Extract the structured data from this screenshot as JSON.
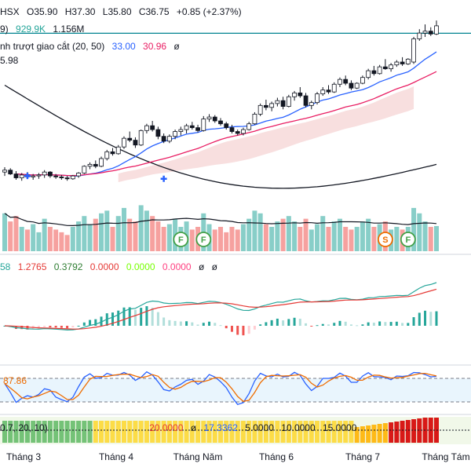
{
  "header": {
    "line1": {
      "exchange": "HSX",
      "open": "O35.90",
      "high": "H37.30",
      "low": "L35.80",
      "close": "C36.75",
      "change": "+0.85 (+2.37%)"
    },
    "line2": {
      "prefix": "9)",
      "volume": "929.9K",
      "volume_ma": "1.156M"
    },
    "line3": {
      "label": "nh trượt giao cắt (20, 50)",
      "ma_fast": "33.00",
      "ma_slow": "30.96",
      "tail": "ø"
    },
    "price_tag": "5.98"
  },
  "macd_header": {
    "v0": "58",
    "v1": "1.2765",
    "v2": "0.3792",
    "v3": "0.0000",
    "v4": "0.0000",
    "v5": "0.0000",
    "v6": "ø",
    "v7": "ø"
  },
  "stoch_header": {
    "value": "87.86"
  },
  "bottom_header": {
    "params": "0.7, 20, 10)",
    "v1": "20.0000",
    "v2": "ø",
    "v3": "17.3362",
    "v4": "5.0000",
    "v5": "10.0000",
    "v6": "15.0000"
  },
  "colors": {
    "up": "#26a69a",
    "down": "#ef5350",
    "ma_fast": "#2962ff",
    "ma_slow": "#e91e63",
    "ma_long": "#131722",
    "cloud": "#f3c5c5",
    "macd_line": "#2e7d32",
    "signal_line": "#e53935",
    "stoch_k": "#2962ff",
    "stoch_d": "#ef6c00",
    "hline": "#00838f"
  },
  "chart_data": {
    "type": "candlestick",
    "symbol_exchange": "HSX",
    "x_tick_labels": [
      "Tháng 3",
      "Tháng 4",
      "Tháng Năm",
      "Tháng 6",
      "Tháng 7",
      "Tháng Tám"
    ],
    "events": [
      {
        "label": "F",
        "kind": "dividend"
      },
      {
        "label": "F",
        "kind": "dividend"
      },
      {
        "label": "S",
        "kind": "split"
      },
      {
        "label": "F",
        "kind": "dividend"
      }
    ],
    "candles": [
      [
        21.6,
        22.1,
        21.2,
        21.8
      ],
      [
        21.8,
        22.0,
        21.3,
        21.4
      ],
      [
        21.4,
        21.7,
        20.8,
        21.0
      ],
      [
        21.0,
        21.5,
        20.7,
        21.3
      ],
      [
        21.3,
        21.6,
        20.9,
        21.1
      ],
      [
        21.1,
        21.4,
        20.8,
        21.2
      ],
      [
        21.2,
        21.5,
        20.9,
        21.3
      ],
      [
        21.3,
        21.8,
        21.0,
        21.6
      ],
      [
        21.6,
        21.7,
        21.0,
        21.2
      ],
      [
        21.2,
        21.4,
        20.9,
        21.1
      ],
      [
        21.1,
        21.3,
        20.8,
        21.0
      ],
      [
        21.0,
        21.2,
        20.7,
        20.9
      ],
      [
        20.9,
        21.3,
        20.8,
        21.2
      ],
      [
        21.2,
        21.6,
        21.0,
        21.5
      ],
      [
        21.5,
        22.3,
        21.4,
        22.2
      ],
      [
        22.2,
        22.6,
        21.9,
        22.4
      ],
      [
        22.4,
        22.8,
        22.0,
        22.2
      ],
      [
        22.2,
        23.2,
        22.1,
        23.0
      ],
      [
        23.0,
        23.9,
        22.8,
        23.7
      ],
      [
        23.7,
        24.1,
        23.3,
        23.5
      ],
      [
        23.5,
        24.4,
        23.4,
        24.2
      ],
      [
        24.2,
        25.3,
        24.0,
        25.1
      ],
      [
        25.1,
        25.8,
        24.7,
        24.9
      ],
      [
        24.9,
        25.2,
        24.1,
        24.4
      ],
      [
        24.4,
        26.0,
        24.3,
        25.9
      ],
      [
        25.9,
        26.6,
        25.6,
        26.4
      ],
      [
        26.4,
        26.9,
        25.8,
        26.0
      ],
      [
        26.0,
        26.3,
        25.0,
        25.3
      ],
      [
        25.3,
        25.6,
        24.6,
        24.8
      ],
      [
        24.8,
        25.5,
        24.6,
        25.3
      ],
      [
        25.3,
        26.0,
        25.0,
        25.8
      ],
      [
        25.8,
        26.3,
        25.4,
        26.0
      ],
      [
        26.0,
        26.6,
        25.6,
        26.4
      ],
      [
        26.4,
        26.8,
        26.0,
        26.2
      ],
      [
        26.2,
        26.5,
        25.7,
        25.9
      ],
      [
        25.9,
        27.4,
        25.8,
        27.1
      ],
      [
        27.1,
        27.6,
        26.8,
        27.3
      ],
      [
        27.3,
        27.5,
        26.7,
        26.9
      ],
      [
        26.9,
        27.2,
        26.4,
        26.6
      ],
      [
        26.6,
        26.8,
        26.0,
        26.2
      ],
      [
        26.2,
        26.5,
        25.6,
        25.8
      ],
      [
        25.8,
        26.0,
        25.4,
        25.6
      ],
      [
        25.6,
        26.2,
        25.4,
        26.0
      ],
      [
        26.0,
        26.8,
        25.9,
        26.6
      ],
      [
        26.6,
        27.8,
        26.5,
        27.6
      ],
      [
        27.6,
        28.7,
        27.4,
        28.5
      ],
      [
        28.5,
        29.1,
        28.0,
        28.3
      ],
      [
        28.3,
        28.9,
        27.9,
        28.7
      ],
      [
        28.7,
        29.3,
        28.4,
        29.0
      ],
      [
        29.0,
        29.4,
        28.1,
        28.4
      ],
      [
        28.4,
        29.6,
        28.3,
        29.4
      ],
      [
        29.4,
        30.0,
        29.0,
        29.8
      ],
      [
        29.8,
        30.4,
        29.3,
        29.5
      ],
      [
        29.5,
        29.8,
        28.3,
        28.5
      ],
      [
        28.5,
        29.0,
        28.1,
        28.8
      ],
      [
        28.8,
        29.9,
        28.6,
        29.7
      ],
      [
        29.7,
        30.4,
        29.5,
        30.1
      ],
      [
        30.1,
        30.6,
        29.7,
        29.9
      ],
      [
        29.9,
        30.9,
        29.8,
        30.7
      ],
      [
        30.7,
        31.4,
        30.4,
        31.2
      ],
      [
        31.2,
        31.6,
        30.6,
        30.8
      ],
      [
        30.8,
        31.1,
        30.1,
        30.3
      ],
      [
        30.3,
        30.9,
        30.2,
        30.8
      ],
      [
        30.8,
        31.6,
        30.7,
        31.4
      ],
      [
        31.4,
        32.3,
        31.2,
        32.1
      ],
      [
        32.1,
        32.6,
        31.6,
        31.8
      ],
      [
        31.8,
        32.7,
        31.7,
        32.5
      ],
      [
        32.5,
        33.3,
        32.2,
        32.3
      ],
      [
        32.3,
        32.9,
        32.0,
        32.7
      ],
      [
        32.7,
        33.2,
        32.5,
        33.0
      ],
      [
        33.0,
        33.5,
        32.6,
        32.8
      ],
      [
        32.8,
        33.4,
        32.7,
        33.3
      ],
      [
        33.0,
        35.6,
        32.8,
        35.4
      ],
      [
        35.4,
        36.4,
        35.2,
        36.0
      ],
      [
        36.0,
        36.9,
        35.6,
        36.2
      ],
      [
        36.2,
        36.6,
        35.7,
        35.9
      ],
      [
        35.9,
        37.3,
        35.8,
        36.75
      ]
    ],
    "ma20_final": 33.0,
    "ma50_final": 30.96,
    "reference_line": 35.98,
    "volume": [
      1.4,
      1.1,
      1.3,
      0.9,
      0.8,
      1.0,
      0.7,
      1.2,
      0.9,
      0.8,
      0.7,
      0.6,
      0.9,
      1.1,
      1.3,
      1.0,
      1.2,
      1.4,
      1.5,
      0.9,
      1.3,
      1.6,
      1.2,
      1.1,
      1.7,
      1.5,
      1.3,
      1.1,
      0.9,
      1.0,
      1.2,
      0.9,
      1.1,
      0.8,
      0.9,
      1.4,
      1.0,
      0.8,
      0.9,
      0.7,
      0.9,
      0.8,
      1.0,
      1.2,
      1.5,
      1.4,
      1.0,
      0.9,
      1.1,
      1.2,
      1.3,
      1.1,
      0.9,
      1.2,
      0.8,
      1.0,
      1.3,
      0.9,
      1.1,
      1.2,
      0.9,
      0.8,
      0.9,
      1.1,
      1.2,
      0.9,
      1.0,
      1.1,
      0.8,
      0.9,
      0.8,
      0.9,
      1.6,
      1.4,
      1.1,
      0.9,
      0.93
    ],
    "volume_ma_final": 1.156,
    "macd": {
      "value": 1.2765,
      "signal_or_hist": 0.3792
    },
    "stoch": {
      "upper": 80,
      "lower": 20,
      "last": 87.86
    },
    "bottom_indicator_levels": [
      20.0,
      17.3362,
      5.0,
      10.0,
      15.0
    ]
  }
}
